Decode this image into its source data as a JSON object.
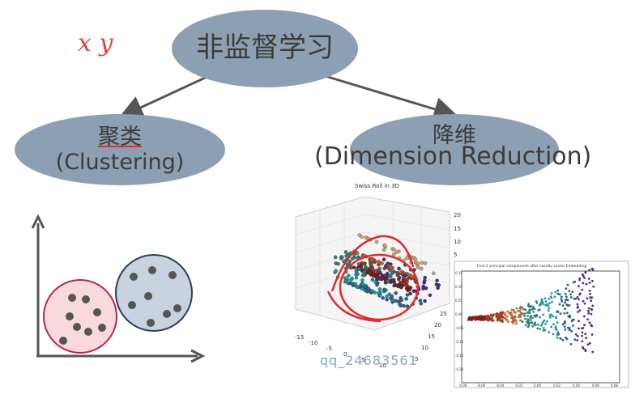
{
  "root": {
    "label": "非监督学习"
  },
  "clustering": {
    "label_cn": "聚类",
    "label_en": "(Clustering)"
  },
  "dimension_reduction": {
    "label_cn": "降维",
    "label_en": "(Dimension Reduction)"
  },
  "handwriting": {
    "marks": "x  y"
  },
  "swiss_roll": {
    "title": "Swiss Roll in 3D",
    "z_ticks": [
      "20",
      "15",
      "10",
      "5"
    ],
    "x_ticks": [
      "-15",
      "-10",
      "-5",
      "0",
      "5",
      "10"
    ],
    "y_ticks": [
      "25",
      "20",
      "15",
      "10",
      "5"
    ]
  },
  "embedding_chart": {
    "title": "First 2 principal components after Locally Linear Embedding",
    "y_ticks": [
      "0.15",
      "0.10",
      "0.05",
      "0.00",
      "-0.05",
      "-0.10",
      "-0.15",
      "-0.20"
    ],
    "x_ticks": [
      "-0.08",
      "-0.06",
      "-0.04",
      "-0.02",
      "0.00",
      "0.02",
      "0.04",
      "0.06",
      "0.08"
    ]
  },
  "watermark": "qq_24683561",
  "colors": {
    "node_fill": "#8d9fb2",
    "arrow": "#555555",
    "cluster_red": "#f8d9dc",
    "cluster_blue": "#c9d3df",
    "dot": "#555555"
  }
}
